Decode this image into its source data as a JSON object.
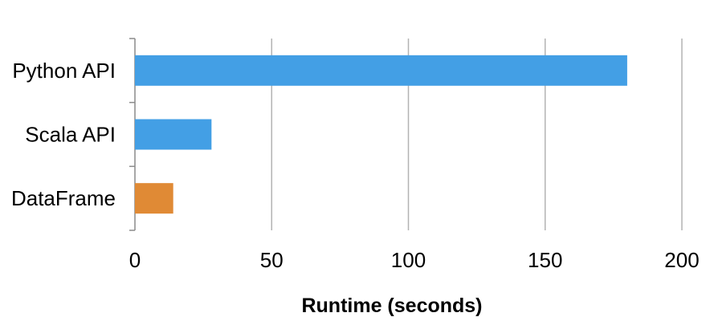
{
  "chart_data": {
    "type": "bar",
    "orientation": "horizontal",
    "categories": [
      "Python API",
      "Scala API",
      "DataFrame"
    ],
    "values": [
      180,
      28,
      14
    ],
    "bar_colors": [
      "#439FE5",
      "#439FE5",
      "#E08A35"
    ],
    "title": "",
    "xlabel": "Runtime (seconds)",
    "ylabel": "",
    "xlim": [
      0,
      200
    ],
    "xticks": [
      0,
      50,
      100,
      150,
      200
    ],
    "grid": "vertical"
  }
}
